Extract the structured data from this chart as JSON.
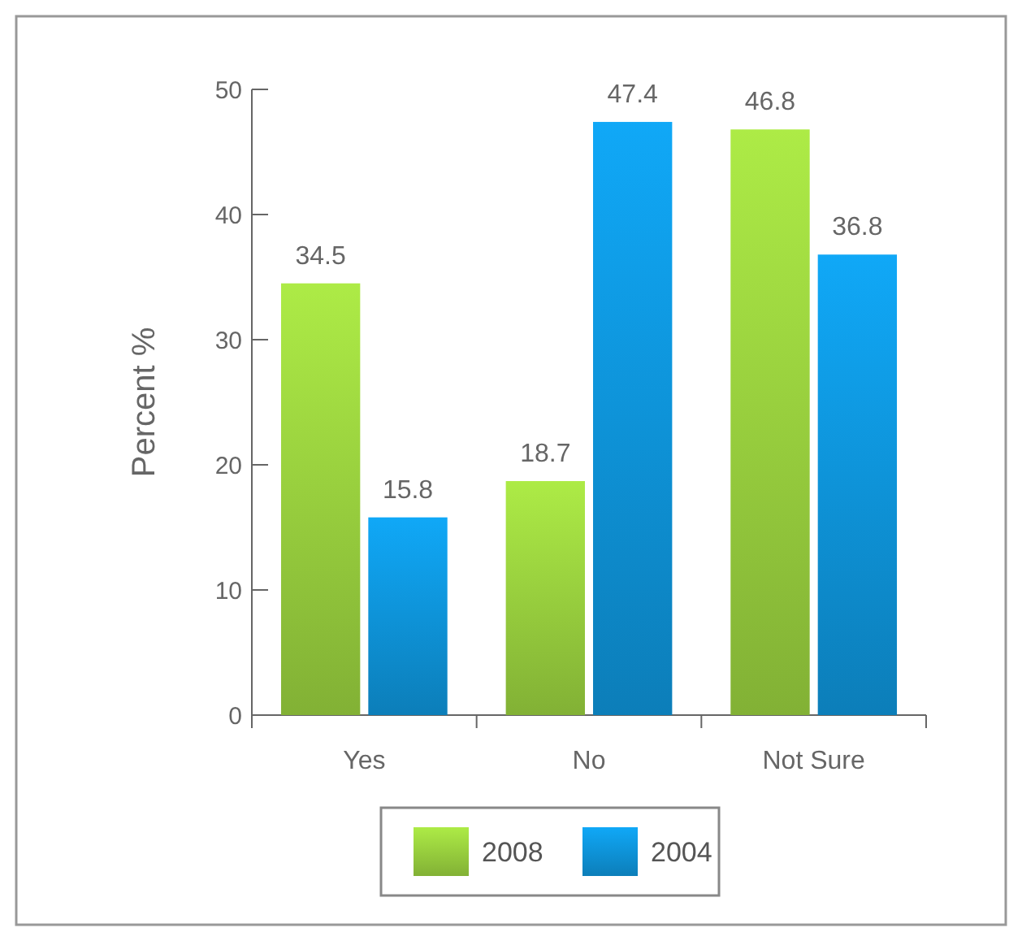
{
  "chart_data": {
    "type": "bar",
    "ylabel": "Percent %",
    "categories": [
      "Yes",
      "No",
      "Not Sure"
    ],
    "series": [
      {
        "name": "2008",
        "color": "#93c83c",
        "values": [
          34.5,
          18.7,
          46.8
        ]
      },
      {
        "name": "2004",
        "color": "#0e8fd2",
        "values": [
          15.8,
          47.4,
          36.8
        ]
      }
    ],
    "ylim": [
      0,
      50
    ],
    "yticks": [
      0,
      10,
      20,
      30,
      40,
      50
    ],
    "data_labels": true,
    "legend": "bottom",
    "grid": false
  }
}
